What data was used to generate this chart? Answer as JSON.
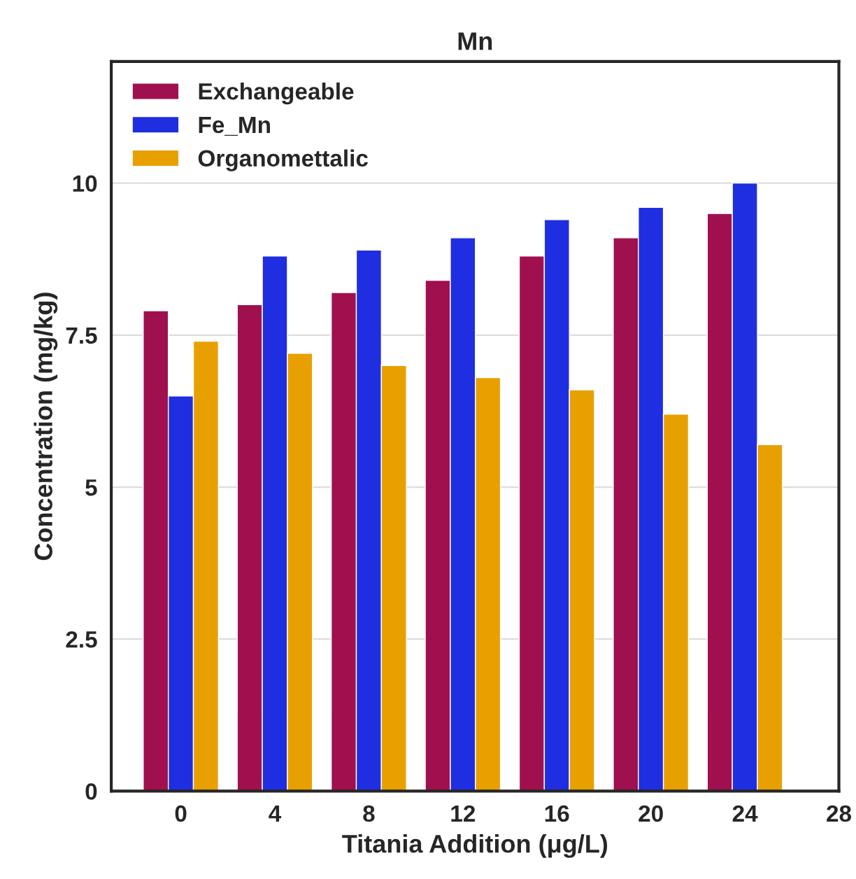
{
  "chart_data": {
    "type": "bar",
    "title": "Mn",
    "xlabel": "Titania Addition (μg/L)",
    "ylabel": "Concentration (mg/kg)",
    "categories": [
      "0",
      "4",
      "8",
      "12",
      "16",
      "20",
      "24",
      "28"
    ],
    "series": [
      {
        "name": "Exchangeable",
        "color": "#a0104e",
        "values": [
          7.9,
          8.0,
          8.2,
          8.4,
          8.8,
          9.1,
          9.5,
          null
        ]
      },
      {
        "name": "Fe_Mn",
        "color": "#1f2ee0",
        "values": [
          6.5,
          8.8,
          8.9,
          9.1,
          9.4,
          9.6,
          10.0,
          null
        ]
      },
      {
        "name": "Organomettalic",
        "color": "#e8a000",
        "values": [
          7.4,
          7.2,
          7.0,
          6.8,
          6.6,
          6.2,
          5.7,
          null
        ]
      }
    ],
    "ylim": [
      0,
      12
    ],
    "yticks": [
      0,
      2.5,
      5,
      7.5,
      10
    ],
    "grid": "y",
    "legend": "top left"
  }
}
